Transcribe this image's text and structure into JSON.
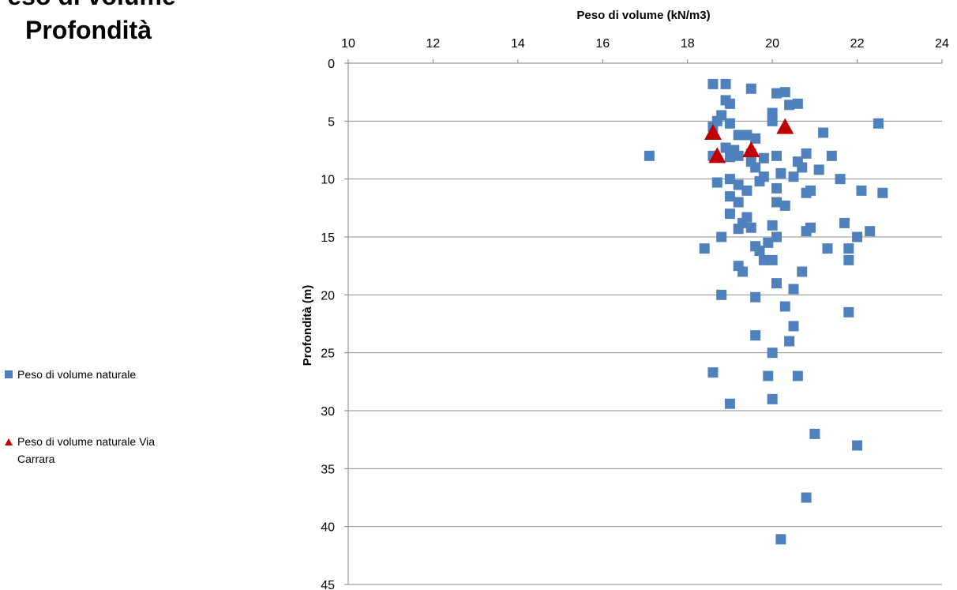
{
  "title_lines": [
    "Peso di volume",
    "Profondità"
  ],
  "chart_data": {
    "type": "scatter",
    "xlabel": "Peso di volume (kN/m3)",
    "ylabel": "Profondità (m)",
    "xlim": [
      10,
      24
    ],
    "ylim": [
      0,
      45
    ],
    "x_axis_position": "top",
    "y_axis_reversed": true,
    "x_ticks": [
      10,
      12,
      14,
      16,
      18,
      20,
      22,
      24
    ],
    "y_ticks": [
      0,
      5,
      10,
      15,
      20,
      25,
      30,
      35,
      40,
      45
    ],
    "grid": "horizontal",
    "legend_position": "left",
    "series": [
      {
        "name": "Peso di volume naturale",
        "marker": "square",
        "color": "#4F81BD",
        "points": [
          [
            18.6,
            1.8
          ],
          [
            18.9,
            1.8
          ],
          [
            19.5,
            2.2
          ],
          [
            20.1,
            2.6
          ],
          [
            20.3,
            2.5
          ],
          [
            18.9,
            3.2
          ],
          [
            19.0,
            3.5
          ],
          [
            20.4,
            3.6
          ],
          [
            20.6,
            3.5
          ],
          [
            18.8,
            4.5
          ],
          [
            20.0,
            4.3
          ],
          [
            18.7,
            5.0
          ],
          [
            19.0,
            5.2
          ],
          [
            20.0,
            5.0
          ],
          [
            22.5,
            5.2
          ],
          [
            18.6,
            5.5
          ],
          [
            19.2,
            6.2
          ],
          [
            19.4,
            6.2
          ],
          [
            19.6,
            6.5
          ],
          [
            21.2,
            6.0
          ],
          [
            18.9,
            7.3
          ],
          [
            19.1,
            7.5
          ],
          [
            18.6,
            8.0
          ],
          [
            17.1,
            8.0
          ],
          [
            19.0,
            8.1
          ],
          [
            19.2,
            8.0
          ],
          [
            19.5,
            7.8
          ],
          [
            19.8,
            8.2
          ],
          [
            20.1,
            8.0
          ],
          [
            20.8,
            7.8
          ],
          [
            21.4,
            8.0
          ],
          [
            19.6,
            9.0
          ],
          [
            19.5,
            8.5
          ],
          [
            20.6,
            8.5
          ],
          [
            20.7,
            9.0
          ],
          [
            21.1,
            9.2
          ],
          [
            19.8,
            9.8
          ],
          [
            20.2,
            9.5
          ],
          [
            20.5,
            9.8
          ],
          [
            19.0,
            10.0
          ],
          [
            18.7,
            10.3
          ],
          [
            19.2,
            10.5
          ],
          [
            19.7,
            10.2
          ],
          [
            21.6,
            10.0
          ],
          [
            19.4,
            11.0
          ],
          [
            20.1,
            10.8
          ],
          [
            20.8,
            11.2
          ],
          [
            20.9,
            11.0
          ],
          [
            22.1,
            11.0
          ],
          [
            22.6,
            11.2
          ],
          [
            19.0,
            11.5
          ],
          [
            19.2,
            12.0
          ],
          [
            20.1,
            12.0
          ],
          [
            20.3,
            12.3
          ],
          [
            19.0,
            13.0
          ],
          [
            19.4,
            13.3
          ],
          [
            19.3,
            13.8
          ],
          [
            20.0,
            14.0
          ],
          [
            21.7,
            13.8
          ],
          [
            19.2,
            14.3
          ],
          [
            19.5,
            14.2
          ],
          [
            20.8,
            14.5
          ],
          [
            20.9,
            14.2
          ],
          [
            22.3,
            14.5
          ],
          [
            18.8,
            15.0
          ],
          [
            19.9,
            15.5
          ],
          [
            20.1,
            15.0
          ],
          [
            22.0,
            15.0
          ],
          [
            18.4,
            16.0
          ],
          [
            19.6,
            15.8
          ],
          [
            19.7,
            16.2
          ],
          [
            21.3,
            16.0
          ],
          [
            21.8,
            16.0
          ],
          [
            19.8,
            17.0
          ],
          [
            20.0,
            17.0
          ],
          [
            21.8,
            17.0
          ],
          [
            19.2,
            17.5
          ],
          [
            19.3,
            18.0
          ],
          [
            20.7,
            18.0
          ],
          [
            20.1,
            19.0
          ],
          [
            20.5,
            19.5
          ],
          [
            18.8,
            20.0
          ],
          [
            19.6,
            20.2
          ],
          [
            20.3,
            21.0
          ],
          [
            21.8,
            21.5
          ],
          [
            20.5,
            22.7
          ],
          [
            19.6,
            23.5
          ],
          [
            20.4,
            24.0
          ],
          [
            20.0,
            25.0
          ],
          [
            18.6,
            26.7
          ],
          [
            19.9,
            27.0
          ],
          [
            20.6,
            27.0
          ],
          [
            20.0,
            29.0
          ],
          [
            19.0,
            29.4
          ],
          [
            21.0,
            32.0
          ],
          [
            22.0,
            33.0
          ],
          [
            20.8,
            37.5
          ],
          [
            20.2,
            41.1
          ]
        ]
      },
      {
        "name": "Peso di volume naturale Via Carrara",
        "marker": "triangle",
        "color": "#C00000",
        "points": [
          [
            20.3,
            5.5
          ],
          [
            18.6,
            6.0
          ],
          [
            19.5,
            7.5
          ],
          [
            18.7,
            8.0
          ]
        ]
      }
    ]
  }
}
